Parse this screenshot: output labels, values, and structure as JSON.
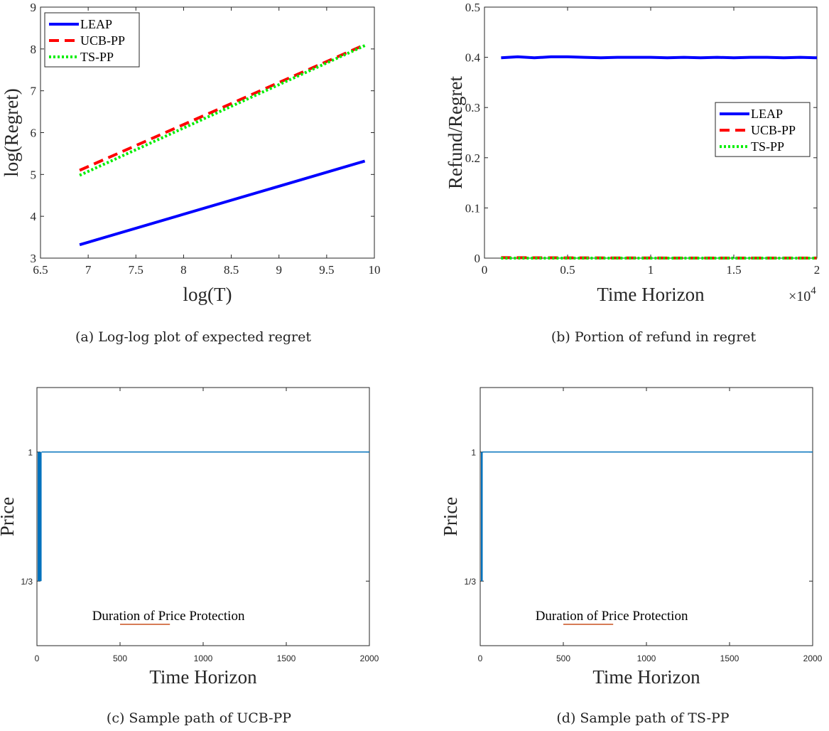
{
  "chart_data": [
    {
      "id": "a",
      "type": "line",
      "caption": "(a) Log-log plot of expected regret",
      "xlabel": "log(T)",
      "ylabel": "log(Regret)",
      "xlim": [
        6.5,
        10
      ],
      "ylim": [
        3,
        9
      ],
      "xticks": [
        "6.5",
        "7",
        "7.5",
        "8",
        "8.5",
        "9",
        "9.5",
        "10"
      ],
      "yticks": [
        "3",
        "4",
        "5",
        "6",
        "7",
        "8",
        "9"
      ],
      "legend_position": "top-left",
      "series": [
        {
          "name": "LEAP",
          "color": "#0000ff",
          "style": "solid",
          "x": [
            6.91,
            9.9
          ],
          "y": [
            3.32,
            5.32
          ]
        },
        {
          "name": "UCB-PP",
          "color": "#ff0000",
          "style": "dashed",
          "x": [
            6.91,
            9.9
          ],
          "y": [
            5.1,
            8.1
          ]
        },
        {
          "name": "TS-PP",
          "color": "#00ee00",
          "style": "dotted",
          "x": [
            6.91,
            9.9
          ],
          "y": [
            4.98,
            8.08
          ]
        }
      ]
    },
    {
      "id": "b",
      "type": "line",
      "caption": "(b) Portion of refund in regret",
      "xlabel": "Time Horizon",
      "ylabel": "Refund/Regret",
      "xlim": [
        0,
        2
      ],
      "ylim": [
        0,
        0.5
      ],
      "x_exponent": "4",
      "xticks": [
        "0",
        "0.5",
        "1",
        "1.5",
        "2"
      ],
      "yticks": [
        "0",
        "0.1",
        "0.2",
        "0.3",
        "0.4",
        "0.5"
      ],
      "legend_position": "right",
      "series": [
        {
          "name": "LEAP",
          "color": "#0000ff",
          "style": "solid",
          "x": [
            0.1,
            0.2,
            0.3,
            0.4,
            0.5,
            0.6,
            0.7,
            0.8,
            0.9,
            1.0,
            1.1,
            1.2,
            1.3,
            1.4,
            1.5,
            1.6,
            1.7,
            1.8,
            1.9,
            2.0
          ],
          "y": [
            0.399,
            0.401,
            0.399,
            0.401,
            0.401,
            0.4,
            0.399,
            0.4,
            0.4,
            0.4,
            0.399,
            0.4,
            0.399,
            0.4,
            0.399,
            0.4,
            0.4,
            0.399,
            0.4,
            0.399
          ]
        },
        {
          "name": "UCB-PP",
          "color": "#ff0000",
          "style": "dashed",
          "x": [
            0.1,
            0.5,
            1.0,
            1.5,
            2.0
          ],
          "y": [
            0.001,
            0.0005,
            0.0003,
            0.0002,
            0.0002
          ]
        },
        {
          "name": "TS-PP",
          "color": "#00ee00",
          "style": "dotted",
          "x": [
            0.1,
            0.5,
            1.0,
            1.5,
            2.0
          ],
          "y": [
            0.0,
            0.0,
            0.0,
            0.0,
            0.0
          ]
        }
      ]
    },
    {
      "id": "c",
      "type": "line",
      "caption": "(c) Sample path of UCB-PP",
      "xlabel": "Time Horizon",
      "ylabel": "Price",
      "xlim": [
        0,
        2000
      ],
      "ylim": [
        0,
        1.333
      ],
      "xticks": [
        "0",
        "500",
        "1000",
        "1500",
        "2000"
      ],
      "yticks": [
        {
          "label": "1/3",
          "value": 0.3333
        },
        {
          "label": "1",
          "value": 1
        }
      ],
      "annotation": "Duration of Price Protection",
      "annotation_line_x": [
        500,
        800
      ],
      "annotation_color": "#c8501e",
      "path_color": "#0072bd",
      "oscillation_end": 28,
      "low_price": 0.3333,
      "high_price": 1
    },
    {
      "id": "d",
      "type": "line",
      "caption": "(d) Sample path of TS-PP",
      "xlabel": "Time Horizon",
      "ylabel": "Price",
      "xlim": [
        0,
        2000
      ],
      "ylim": [
        0,
        1.333
      ],
      "xticks": [
        "0",
        "500",
        "1000",
        "1500",
        "2000"
      ],
      "yticks": [
        {
          "label": "1/3",
          "value": 0.3333
        },
        {
          "label": "1",
          "value": 1
        }
      ],
      "annotation": "Duration of Price Protection",
      "annotation_line_x": [
        500,
        800
      ],
      "annotation_color": "#c8501e",
      "path_color": "#0072bd",
      "oscillation_end": 15,
      "low_price": 0.3333,
      "high_price": 1
    }
  ]
}
